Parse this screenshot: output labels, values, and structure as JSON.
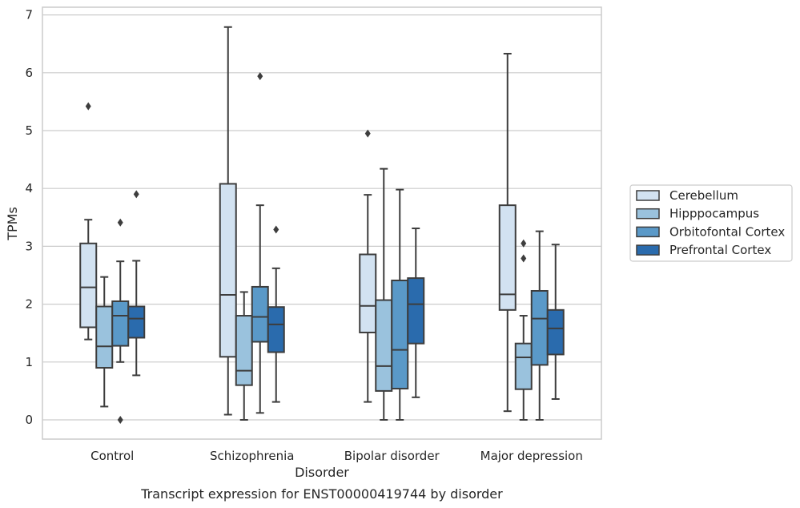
{
  "chart_data": {
    "type": "box",
    "xlabel": "Disorder",
    "ylabel": "TPMs",
    "caption": "Transcript expression for ENST00000419744 by disorder",
    "ylim": [
      -0.32,
      7.13
    ],
    "yticks": [
      0,
      1,
      2,
      3,
      4,
      5,
      6,
      7
    ],
    "grid": "horizontal",
    "legend_position": "right",
    "categories": [
      "Control",
      "Schizophrenia",
      "Bipolar disorder",
      "Major depression"
    ],
    "series": [
      {
        "name": "Cerebellum",
        "color": "#d2e2f1",
        "boxes": [
          {
            "whislo": 1.39,
            "q1": 1.6,
            "med": 2.29,
            "q3": 3.05,
            "whishi": 3.46,
            "fliers": [
              5.42
            ]
          },
          {
            "whislo": 0.09,
            "q1": 1.09,
            "med": 2.16,
            "q3": 4.08,
            "whishi": 6.79,
            "fliers": []
          },
          {
            "whislo": 0.31,
            "q1": 1.51,
            "med": 1.97,
            "q3": 2.86,
            "whishi": 3.89,
            "fliers": [
              4.95
            ]
          },
          {
            "whislo": 0.15,
            "q1": 1.9,
            "med": 2.17,
            "q3": 3.71,
            "whishi": 6.33,
            "fliers": []
          }
        ]
      },
      {
        "name": "Hipppocampus",
        "color": "#9ac2dd",
        "boxes": [
          {
            "whislo": 0.23,
            "q1": 0.9,
            "med": 1.27,
            "q3": 1.96,
            "whishi": 2.47,
            "fliers": []
          },
          {
            "whislo": 0.0,
            "q1": 0.6,
            "med": 0.85,
            "q3": 1.8,
            "whishi": 2.21,
            "fliers": []
          },
          {
            "whislo": 0.0,
            "q1": 0.5,
            "med": 0.93,
            "q3": 2.07,
            "whishi": 4.34,
            "fliers": []
          },
          {
            "whislo": 0.0,
            "q1": 0.53,
            "med": 1.08,
            "q3": 1.32,
            "whishi": 1.8,
            "fliers": [
              3.05,
              2.79
            ]
          }
        ]
      },
      {
        "name": "Orbitofontal Cortex",
        "color": "#5a99c8",
        "boxes": [
          {
            "whislo": 1.0,
            "q1": 1.28,
            "med": 1.8,
            "q3": 2.05,
            "whishi": 2.74,
            "fliers": [
              3.41,
              0.0
            ]
          },
          {
            "whislo": 0.12,
            "q1": 1.35,
            "med": 1.78,
            "q3": 2.3,
            "whishi": 3.71,
            "fliers": [
              5.94
            ]
          },
          {
            "whislo": 0.0,
            "q1": 0.54,
            "med": 1.21,
            "q3": 2.41,
            "whishi": 3.98,
            "fliers": []
          },
          {
            "whislo": 0.0,
            "q1": 0.95,
            "med": 1.75,
            "q3": 2.23,
            "whishi": 3.26,
            "fliers": []
          }
        ]
      },
      {
        "name": "Prefrontal Cortex",
        "color": "#2a6bad",
        "boxes": [
          {
            "whislo": 0.77,
            "q1": 1.42,
            "med": 1.75,
            "q3": 1.96,
            "whishi": 2.75,
            "fliers": [
              3.9
            ]
          },
          {
            "whislo": 0.31,
            "q1": 1.17,
            "med": 1.65,
            "q3": 1.95,
            "whishi": 2.62,
            "fliers": [
              3.29
            ]
          },
          {
            "whislo": 0.39,
            "q1": 1.32,
            "med": 2.0,
            "q3": 2.45,
            "whishi": 3.31,
            "fliers": []
          },
          {
            "whislo": 0.36,
            "q1": 1.13,
            "med": 1.58,
            "q3": 1.9,
            "whishi": 3.03,
            "fliers": []
          }
        ]
      }
    ]
  }
}
